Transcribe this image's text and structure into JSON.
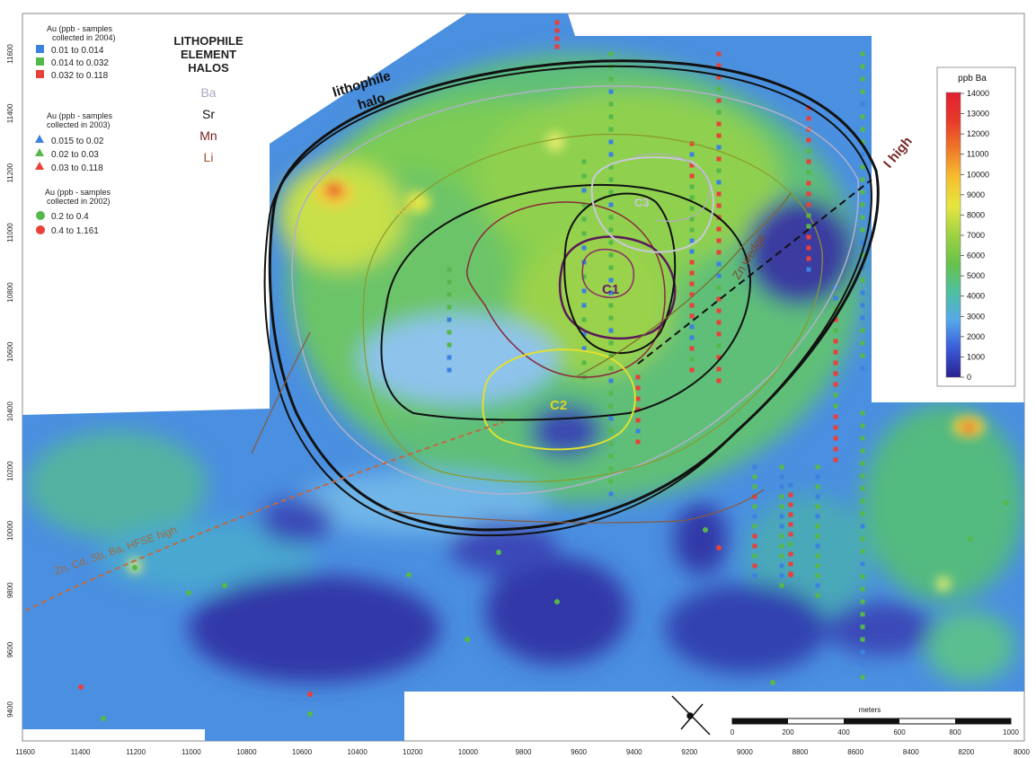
{
  "legend": {
    "groups": [
      {
        "title_lines": [
          "Au (ppb - samples",
          "collected in 2004)"
        ],
        "symbol": "square",
        "items": [
          {
            "label": "0.01  to  0.014",
            "color": "#3b82e0"
          },
          {
            "label": "0.014  to  0.032",
            "color": "#55b84a"
          },
          {
            "label": "0.032  to  0.118",
            "color": "#e8403a"
          }
        ]
      },
      {
        "title_lines": [
          "Au (ppb - samples",
          "collected in 2003)"
        ],
        "symbol": "triangle",
        "items": [
          {
            "label": "0.015  to  0.02",
            "color": "#3b82e0"
          },
          {
            "label": "0.02  to  0.03",
            "color": "#55b84a"
          },
          {
            "label": "0.03  to  0.118",
            "color": "#e8403a"
          }
        ]
      },
      {
        "title_lines": [
          "Au (ppb - samples",
          "collected in 2002)"
        ],
        "symbol": "circle",
        "items": [
          {
            "label": "0.2  to  0.4",
            "color": "#55b84a"
          },
          {
            "label": "0.4  to  1.161",
            "color": "#e8403a"
          }
        ]
      }
    ]
  },
  "halos": {
    "title_lines": [
      "LITHOPHILE",
      "ELEMENT",
      "HALOS"
    ],
    "elements": [
      {
        "label": "Ba",
        "color": "#a9a9c6"
      },
      {
        "label": "Sr",
        "color": "#111111"
      },
      {
        "label": "Mn",
        "color": "#7a1f1f"
      },
      {
        "label": "Li",
        "color": "#a0522d"
      }
    ]
  },
  "map_labels": {
    "lithophile_halo": [
      "lithophile",
      "halo"
    ],
    "c1": "C1",
    "c2": "C2",
    "c3": "C3",
    "halo_small": "halo",
    "zn_wedge": "Zn wedge",
    "i_high": "I high",
    "hfse_high": "Zn, Cd, Sb, Ba, HFSE high"
  },
  "colorbar": {
    "title": "ppb Ba",
    "ticks": [
      "14000",
      "13000",
      "12000",
      "11000",
      "10000",
      "9000",
      "8000",
      "7000",
      "6000",
      "5000",
      "4000",
      "3000",
      "2000",
      "1000",
      "0"
    ],
    "colors": [
      "#2a2190",
      "#3a5ad8",
      "#55a8ec",
      "#4fc0a0",
      "#68c24a",
      "#b8d840",
      "#f0e840",
      "#f0a030",
      "#e83a2a",
      "#e02030"
    ]
  },
  "axis_left": {
    "ticks": [
      "11600",
      "11400",
      "11200",
      "11000",
      "10800",
      "10600",
      "10400",
      "10200",
      "10000",
      "9800",
      "9600",
      "9400"
    ]
  },
  "axis_bottom": {
    "ticks": [
      "11600",
      "11400",
      "11200",
      "11000",
      "10800",
      "10600",
      "10400",
      "10200",
      "10000",
      "9800",
      "9600",
      "9400",
      "9200",
      "9000",
      "8800",
      "8600",
      "8400",
      "8200",
      "8000"
    ]
  },
  "scalebar": {
    "title": "meters",
    "ticks": [
      "0",
      "200",
      "400",
      "600",
      "800",
      "1000"
    ]
  }
}
